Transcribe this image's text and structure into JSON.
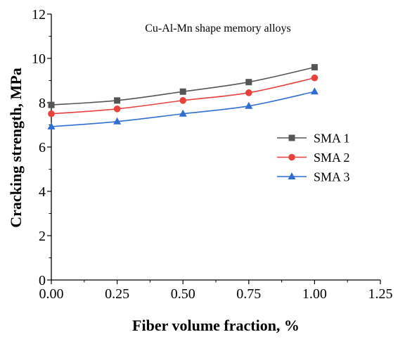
{
  "chart_data": {
    "type": "line",
    "title": "",
    "annotation": "Cu-Al-Mn shape memory alloys",
    "xlabel": "Fiber volume fraction, %",
    "ylabel": "Cracking strength, MPa",
    "xlim": [
      0,
      1.25
    ],
    "ylim": [
      0,
      12
    ],
    "x_ticks": [
      "0.00",
      "0.25",
      "0.50",
      "0.75",
      "1.00",
      "1.25"
    ],
    "y_ticks": [
      "0",
      "2",
      "4",
      "6",
      "8",
      "10",
      "12"
    ],
    "grid": false,
    "legend_position": "right-middle",
    "x": [
      0,
      0.25,
      0.5,
      0.75,
      1.0
    ],
    "series": [
      {
        "name": "SMA 1",
        "values": [
          7.9,
          8.1,
          8.5,
          8.93,
          9.6
        ],
        "color": "#555555",
        "marker": "square"
      },
      {
        "name": "SMA 2",
        "values": [
          7.5,
          7.72,
          8.1,
          8.45,
          9.12
        ],
        "color": "#e8413c",
        "marker": "circle"
      },
      {
        "name": "SMA 3",
        "values": [
          6.92,
          7.15,
          7.5,
          7.85,
          8.5
        ],
        "color": "#2f6fd3",
        "marker": "triangle"
      }
    ]
  }
}
